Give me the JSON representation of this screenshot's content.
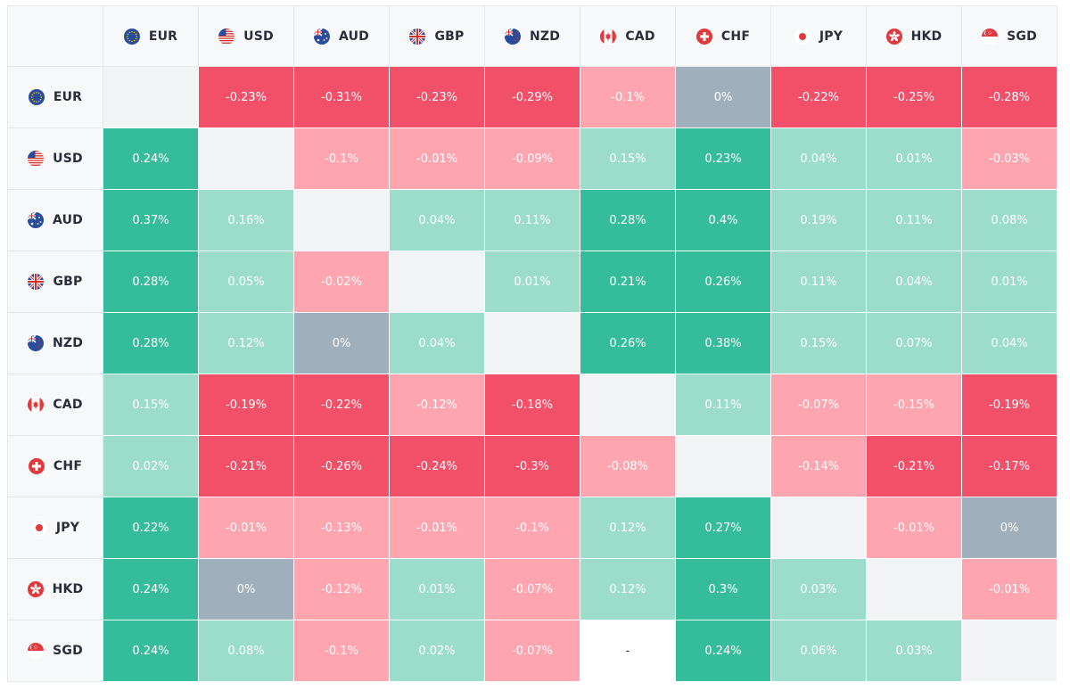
{
  "currencies": [
    "EUR",
    "USD",
    "AUD",
    "GBP",
    "NZD",
    "CAD",
    "CHF",
    "JPY",
    "HKD",
    "SGD"
  ],
  "flag_icons": {
    "EUR": "eu-flag-icon",
    "USD": "us-flag-icon",
    "AUD": "au-flag-icon",
    "GBP": "gb-flag-icon",
    "NZD": "nz-flag-icon",
    "CAD": "ca-flag-icon",
    "CHF": "ch-flag-icon",
    "JPY": "jp-flag-icon",
    "HKD": "hk-flag-icon",
    "SGD": "sg-flag-icon"
  },
  "colors": {
    "strong_positive": "#35bc9a",
    "weak_positive": "#9bddca",
    "strong_negative": "#f24f69",
    "weak_negative": "#ffa5b0",
    "neutral": "#9fb0bc",
    "diagonal": "#f2f3f5"
  },
  "chart_data": {
    "type": "heatmap",
    "rows": [
      "EUR",
      "USD",
      "AUD",
      "GBP",
      "NZD",
      "CAD",
      "CHF",
      "JPY",
      "HKD",
      "SGD"
    ],
    "columns": [
      "EUR",
      "USD",
      "AUD",
      "GBP",
      "NZD",
      "CAD",
      "CHF",
      "JPY",
      "HKD",
      "SGD"
    ],
    "values": [
      [
        "",
        "-0.23%",
        "-0.31%",
        "-0.23%",
        "-0.29%",
        "-0.1%",
        "0%",
        "-0.22%",
        "-0.25%",
        "-0.28%"
      ],
      [
        "0.24%",
        "",
        "-0.1%",
        "-0.01%",
        "-0.09%",
        "0.15%",
        "0.23%",
        "0.04%",
        "0.01%",
        "-0.03%"
      ],
      [
        "0.37%",
        "0.16%",
        "",
        "0.04%",
        "0.11%",
        "0.28%",
        "0.4%",
        "0.19%",
        "0.11%",
        "0.08%"
      ],
      [
        "0.28%",
        "0.05%",
        "-0.02%",
        "",
        "0.01%",
        "0.21%",
        "0.26%",
        "0.11%",
        "0.04%",
        "0.01%"
      ],
      [
        "0.28%",
        "0.12%",
        "0%",
        "0.04%",
        "",
        "0.26%",
        "0.38%",
        "0.15%",
        "0.07%",
        "0.04%"
      ],
      [
        "0.15%",
        "-0.19%",
        "-0.22%",
        "-0.12%",
        "-0.18%",
        "",
        "0.11%",
        "-0.07%",
        "-0.15%",
        "-0.19%"
      ],
      [
        "0.02%",
        "-0.21%",
        "-0.26%",
        "-0.24%",
        "-0.3%",
        "-0.08%",
        "",
        "-0.14%",
        "-0.21%",
        "-0.17%"
      ],
      [
        "0.22%",
        "-0.01%",
        "-0.13%",
        "-0.01%",
        "-0.1%",
        "0.12%",
        "0.27%",
        "",
        "-0.01%",
        "0%"
      ],
      [
        "0.24%",
        "0%",
        "-0.12%",
        "0.01%",
        "-0.07%",
        "0.12%",
        "0.3%",
        "0.03%",
        "",
        "-0.01%"
      ],
      [
        "0.24%",
        "0.08%",
        "-0.1%",
        "0.02%",
        "-0.07%",
        "-",
        "0.24%",
        "0.06%",
        "0.03%",
        ""
      ]
    ],
    "color_class": [
      [
        "diagonal",
        "strong_negative",
        "strong_negative",
        "strong_negative",
        "strong_negative",
        "weak_negative",
        "neutral",
        "strong_negative",
        "strong_negative",
        "strong_negative"
      ],
      [
        "strong_positive",
        "diagonal",
        "weak_negative",
        "weak_negative",
        "weak_negative",
        "weak_positive",
        "strong_positive",
        "weak_positive",
        "weak_positive",
        "weak_negative"
      ],
      [
        "strong_positive",
        "weak_positive",
        "diagonal",
        "weak_positive",
        "weak_positive",
        "strong_positive",
        "strong_positive",
        "weak_positive",
        "weak_positive",
        "weak_positive"
      ],
      [
        "strong_positive",
        "weak_positive",
        "weak_negative",
        "diagonal",
        "weak_positive",
        "strong_positive",
        "strong_positive",
        "weak_positive",
        "weak_positive",
        "weak_positive"
      ],
      [
        "strong_positive",
        "weak_positive",
        "neutral",
        "weak_positive",
        "diagonal",
        "strong_positive",
        "strong_positive",
        "weak_positive",
        "weak_positive",
        "weak_positive"
      ],
      [
        "weak_positive",
        "strong_negative",
        "strong_negative",
        "weak_negative",
        "strong_negative",
        "diagonal",
        "weak_positive",
        "weak_negative",
        "weak_negative",
        "strong_negative"
      ],
      [
        "weak_positive",
        "strong_negative",
        "strong_negative",
        "strong_negative",
        "strong_negative",
        "weak_negative",
        "diagonal",
        "weak_negative",
        "strong_negative",
        "strong_negative"
      ],
      [
        "strong_positive",
        "weak_negative",
        "weak_negative",
        "weak_negative",
        "weak_negative",
        "weak_positive",
        "strong_positive",
        "diagonal",
        "weak_negative",
        "neutral"
      ],
      [
        "strong_positive",
        "neutral",
        "weak_negative",
        "weak_positive",
        "weak_negative",
        "weak_positive",
        "strong_positive",
        "weak_positive",
        "diagonal",
        "weak_negative"
      ],
      [
        "strong_positive",
        "weak_positive",
        "weak_negative",
        "weak_positive",
        "weak_negative",
        "blank",
        "strong_positive",
        "weak_positive",
        "weak_positive",
        "diagonal"
      ]
    ]
  }
}
